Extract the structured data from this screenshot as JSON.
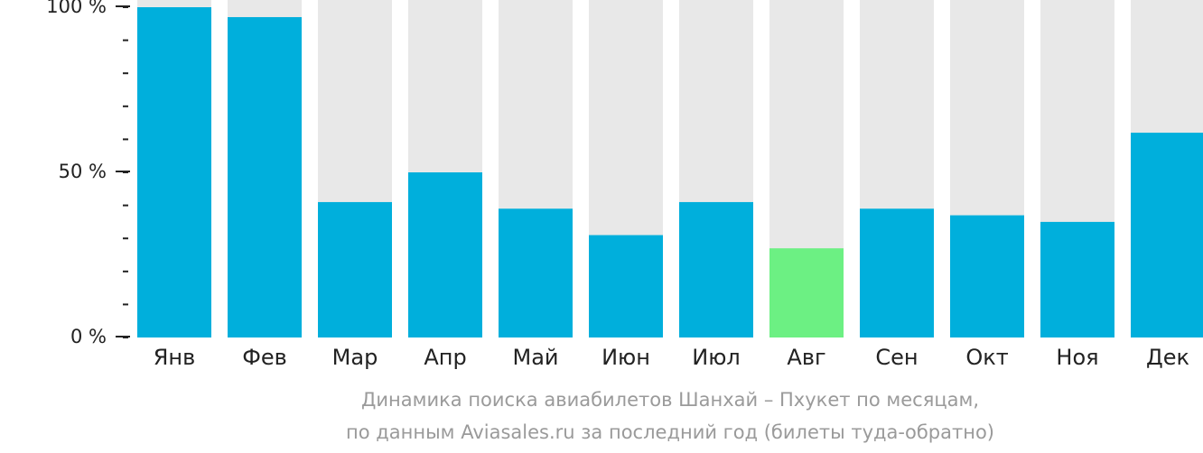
{
  "chart_data": {
    "type": "bar",
    "categories": [
      "Янв",
      "Фев",
      "Мар",
      "Апр",
      "Май",
      "Июн",
      "Июл",
      "Авг",
      "Сен",
      "Окт",
      "Ноя",
      "Дек"
    ],
    "values": [
      100,
      97,
      41,
      50,
      39,
      31,
      41,
      27,
      39,
      37,
      35,
      62
    ],
    "highlight_index": 7,
    "ylim": [
      0,
      100
    ],
    "y_ticks": [
      {
        "value": 0,
        "label": "0 %"
      },
      {
        "value": 50,
        "label": "50 %"
      },
      {
        "value": 100,
        "label": "100 %"
      }
    ],
    "minor_tick_step": 10,
    "grid": false,
    "colors": {
      "bar": "#00afdc",
      "highlight": "#6cf083",
      "background_bar": "#e8e8e8",
      "axis": "#222222",
      "caption": "#9a9a9a"
    }
  },
  "caption": {
    "line1": "Динамика поиска авиабилетов Шанхай – Пхукет по месяцам,",
    "line2": "по данным Aviasales.ru за последний год (билеты туда-обратно)"
  }
}
